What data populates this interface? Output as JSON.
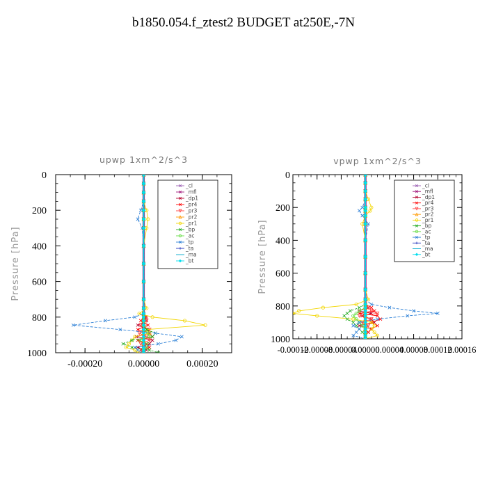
{
  "title": "b1850.054.f_ztest2  BUDGET at250E,-7N",
  "chart_data": [
    {
      "type": "line",
      "title": "upwp   1xm^2/s^3",
      "ylabel": "Pressure [hPa]",
      "xlabel": "",
      "xlim": [
        -0.0003,
        0.0003
      ],
      "ylim": [
        1000,
        0
      ],
      "xticks": [
        -0.0002,
        0.0,
        0.0002
      ],
      "xtick_labels": [
        "-0.00020",
        "0.00000",
        "0.00020"
      ],
      "yticks": [
        0,
        200,
        400,
        600,
        800,
        1000
      ],
      "ytick_labels": [
        "0",
        "200",
        "400",
        "600",
        "800",
        "1000"
      ],
      "legend_position": "top-right",
      "y": [
        0,
        50,
        100,
        150,
        200,
        250,
        300,
        400,
        500,
        600,
        700,
        750,
        780,
        800,
        820,
        845,
        870,
        890,
        910,
        930,
        950,
        970,
        985,
        1000
      ],
      "series": [
        {
          "name": "_cl",
          "color": "#9a5fb3",
          "marker": "x",
          "values": [
            0,
            0,
            0,
            0,
            0,
            0,
            0,
            0,
            0,
            0,
            0,
            0,
            0,
            0,
            0,
            0,
            0,
            0,
            0,
            0,
            0,
            0,
            0,
            0
          ]
        },
        {
          "name": "_mfl",
          "color": "#a1167a",
          "marker": "x",
          "values": [
            0,
            0,
            0,
            0,
            0,
            0,
            0,
            0,
            0,
            0,
            0,
            0,
            0,
            0,
            0,
            0,
            0,
            0,
            0,
            0,
            0,
            0,
            0,
            0
          ]
        },
        {
          "name": "_dp1",
          "color": "#b3002c",
          "marker": "x",
          "values": [
            0,
            0,
            0,
            0,
            0,
            0,
            0,
            0,
            0,
            0,
            0,
            0,
            0,
            5e-06,
            1e-05,
            -2e-05,
            1.5e-05,
            2e-05,
            -2.5e-05,
            3e-05,
            2e-05,
            -2e-05,
            1e-05,
            0
          ]
        },
        {
          "name": "_pr4",
          "color": "#ff0000",
          "marker": "x",
          "values": [
            0,
            0,
            0,
            0,
            0,
            0,
            0,
            0,
            0,
            0,
            0,
            0,
            0,
            1e-05,
            -1e-05,
            1.5e-05,
            -2e-05,
            2e-05,
            3e-05,
            -2e-05,
            1e-05,
            2e-05,
            -1e-05,
            0
          ]
        },
        {
          "name": "_pr3",
          "color": "#ff4040",
          "marker": "v",
          "values": [
            0,
            0,
            0,
            0,
            0,
            0,
            0,
            0,
            0,
            0,
            0,
            0,
            0,
            0,
            1e-05,
            -1e-05,
            2e-05,
            -1.5e-05,
            1e-05,
            2e-05,
            -1e-05,
            1e-05,
            0,
            0
          ]
        },
        {
          "name": "_pr2",
          "color": "#ff9900",
          "marker": "^",
          "values": [
            0,
            0,
            0,
            0,
            0,
            0,
            0,
            0,
            0,
            0,
            0,
            0,
            0,
            0,
            0,
            0,
            0,
            0,
            0,
            0,
            0,
            0,
            0,
            0
          ]
        },
        {
          "name": "_pr1",
          "color": "#f2d600",
          "marker": "o",
          "values": [
            0,
            0,
            0,
            0,
            1e-05,
            1.5e-05,
            1e-05,
            0,
            0,
            0,
            0,
            1e-05,
            -1.5e-05,
            3e-05,
            0.00014,
            0.00021,
            1e-05,
            2e-05,
            -3e-05,
            -4e-05,
            -5e-05,
            -6e-05,
            -3e-05,
            -2e-05
          ]
        },
        {
          "name": "_bp",
          "color": "#22aa22",
          "marker": "x",
          "values": [
            0,
            0,
            0,
            0,
            0,
            0,
            0,
            0,
            0,
            0,
            0,
            0,
            0,
            0,
            0,
            0,
            1e-05,
            4e-05,
            3e-05,
            -4e-05,
            -7e-05,
            -4e-05,
            2e-05,
            5e-05
          ]
        },
        {
          "name": "_ac",
          "color": "#66dd44",
          "marker": "o",
          "values": [
            0,
            0,
            0,
            0,
            0,
            0,
            0,
            0,
            0,
            0,
            0,
            0,
            0,
            0,
            0,
            0,
            0,
            1.5e-05,
            2e-05,
            -1.5e-05,
            1.5e-05,
            1e-05,
            0,
            0
          ]
        },
        {
          "name": "_tp",
          "color": "#2b7fd6",
          "marker": "x",
          "values": [
            0,
            0,
            0,
            0,
            -1e-05,
            -2e-05,
            -5e-06,
            0,
            0,
            0,
            0,
            0,
            0,
            -3e-05,
            -0.00013,
            -0.00024,
            -8e-05,
            4e-05,
            0.00013,
            0.00011,
            5e-05,
            -3e-05,
            -2e-05,
            0
          ]
        },
        {
          "name": "_ta",
          "color": "#2233bb",
          "marker": "+",
          "values": [
            0,
            0,
            0,
            0,
            0,
            0,
            0,
            0,
            0,
            0,
            0,
            0,
            0,
            0,
            0,
            0,
            0,
            0,
            0,
            0,
            0,
            0,
            0,
            0
          ]
        },
        {
          "name": "_ma",
          "color": "#00aacc",
          "marker": "-",
          "values": [
            0,
            0,
            0,
            0,
            0,
            0,
            0,
            0,
            0,
            0,
            0,
            0,
            0,
            0,
            0,
            0,
            0,
            0,
            0,
            0,
            0,
            0,
            0,
            0
          ]
        },
        {
          "name": "_bt",
          "color": "#00ddee",
          "marker": "D",
          "values": [
            0,
            0,
            0,
            0,
            0,
            0,
            0,
            0,
            0,
            0,
            0,
            0,
            0,
            0,
            0,
            0,
            0,
            0,
            0,
            0,
            0,
            0,
            0,
            0
          ]
        }
      ]
    },
    {
      "type": "line",
      "title": "vpwp   1xm^2/s^3",
      "ylabel": "Pressure [hPa]",
      "xlabel": "",
      "xlim": [
        -0.00012,
        0.00016
      ],
      "ylim": [
        1000,
        0
      ],
      "xticks": [
        -0.00012,
        -8e-05,
        -4e-05,
        0.0,
        4e-05,
        8e-05,
        0.00012,
        0.00016
      ],
      "xtick_labels": [
        "-0.00012",
        "-0.00008",
        "-0.00004",
        "0.00000",
        "0.00004",
        "0.00008",
        "0.00012",
        "0.00016"
      ],
      "yticks": [
        0,
        200,
        400,
        600,
        800,
        1000
      ],
      "ytick_labels": [
        "0",
        "200",
        "400",
        "600",
        "800",
        "1000"
      ],
      "legend_position": "top-right",
      "y": [
        0,
        50,
        100,
        150,
        200,
        220,
        250,
        300,
        400,
        500,
        600,
        700,
        760,
        790,
        810,
        830,
        845,
        860,
        880,
        900,
        920,
        940,
        960,
        980,
        1000
      ],
      "series": [
        {
          "name": "_cl",
          "color": "#9a5fb3",
          "marker": "x",
          "values": [
            0,
            0,
            0,
            0,
            0,
            0,
            0,
            0,
            0,
            0,
            0,
            0,
            0,
            0,
            0,
            0,
            0,
            0,
            0,
            0,
            0,
            0,
            0,
            0,
            0
          ]
        },
        {
          "name": "_mfl",
          "color": "#a1167a",
          "marker": "x",
          "values": [
            0,
            0,
            0,
            0,
            0,
            0,
            0,
            0,
            0,
            0,
            0,
            0,
            0,
            0,
            0,
            0,
            0,
            0,
            0,
            0,
            0,
            0,
            0,
            0,
            0
          ]
        },
        {
          "name": "_dp1",
          "color": "#b3002c",
          "marker": "x",
          "values": [
            0,
            0,
            0,
            0,
            0,
            0,
            0,
            0,
            0,
            0,
            0,
            0,
            0,
            0,
            5e-06,
            -1e-05,
            1e-05,
            -5e-06,
            1e-05,
            1.5e-05,
            -1e-05,
            1e-05,
            5e-06,
            0,
            0
          ]
        },
        {
          "name": "_pr4",
          "color": "#ff0000",
          "marker": "x",
          "values": [
            0,
            0,
            0,
            0,
            0,
            0,
            0,
            0,
            0,
            0,
            0,
            0,
            0,
            0,
            1e-05,
            1.5e-05,
            -1e-05,
            2e-05,
            2.5e-05,
            1e-05,
            2e-05,
            1e-05,
            5e-06,
            0,
            0
          ]
        },
        {
          "name": "_pr3",
          "color": "#ff4040",
          "marker": "v",
          "values": [
            0,
            0,
            0,
            0,
            0,
            0,
            0,
            0,
            0,
            0,
            0,
            0,
            0,
            0,
            5e-06,
            1e-05,
            2e-05,
            -1e-05,
            1e-05,
            -5e-06,
            5e-06,
            0,
            0,
            0,
            0
          ]
        },
        {
          "name": "_pr2",
          "color": "#ff9900",
          "marker": "^",
          "values": [
            0,
            0,
            0,
            0,
            0,
            0,
            0,
            0,
            0,
            0,
            0,
            0,
            0,
            0,
            0,
            0,
            0,
            0,
            0,
            0,
            0,
            0,
            0,
            0,
            0
          ]
        },
        {
          "name": "_pr1",
          "color": "#f2d600",
          "marker": "o",
          "values": [
            0,
            0,
            0,
            5e-06,
            1e-05,
            8e-06,
            0,
            -5e-06,
            0,
            0,
            0,
            0,
            5e-06,
            -1.5e-05,
            -7e-05,
            -0.00011,
            -0.00012,
            -8e-05,
            -2e-05,
            1e-05,
            1.5e-05,
            1e-05,
            1.5e-05,
            2e-05,
            0
          ]
        },
        {
          "name": "_bp",
          "color": "#22aa22",
          "marker": "x",
          "values": [
            0,
            0,
            0,
            0,
            0,
            0,
            0,
            0,
            0,
            0,
            0,
            0,
            0,
            0,
            -1e-05,
            -2.5e-05,
            -3e-05,
            -3.5e-05,
            -3e-05,
            -2e-05,
            -1.5e-05,
            -1e-05,
            -5e-06,
            0,
            0
          ]
        },
        {
          "name": "_ac",
          "color": "#66dd44",
          "marker": "o",
          "values": [
            0,
            0,
            0,
            0,
            0,
            0,
            0,
            0,
            0,
            0,
            0,
            0,
            0,
            0,
            0,
            -1e-05,
            -1.5e-05,
            -2e-05,
            -1.5e-05,
            -1e-05,
            -5e-06,
            0,
            0,
            0,
            0
          ]
        },
        {
          "name": "_tp",
          "color": "#2b7fd6",
          "marker": "x",
          "values": [
            0,
            0,
            0,
            0,
            -5e-06,
            -1e-05,
            -5e-06,
            5e-06,
            0,
            0,
            0,
            0,
            0,
            1e-05,
            4e-05,
            8e-05,
            0.00012,
            7e-05,
            2e-05,
            -1e-05,
            -2e-05,
            -1e-05,
            -1.5e-05,
            -2e-05,
            0
          ]
        },
        {
          "name": "_ta",
          "color": "#2233bb",
          "marker": "+",
          "values": [
            0,
            0,
            0,
            0,
            0,
            0,
            0,
            0,
            0,
            0,
            0,
            0,
            0,
            0,
            0,
            0,
            0,
            0,
            0,
            0,
            0,
            0,
            0,
            0,
            0
          ]
        },
        {
          "name": "_ma",
          "color": "#00aacc",
          "marker": "-",
          "values": [
            0,
            0,
            0,
            0,
            0,
            0,
            0,
            0,
            0,
            0,
            0,
            0,
            0,
            0,
            0,
            0,
            0,
            0,
            0,
            0,
            0,
            0,
            0,
            0,
            0
          ]
        },
        {
          "name": "_bt",
          "color": "#00ddee",
          "marker": "D",
          "values": [
            0,
            0,
            0,
            0,
            0,
            0,
            0,
            0,
            0,
            0,
            0,
            0,
            0,
            0,
            0,
            0,
            0,
            0,
            0,
            0,
            0,
            0,
            0,
            0,
            0
          ]
        }
      ]
    }
  ]
}
